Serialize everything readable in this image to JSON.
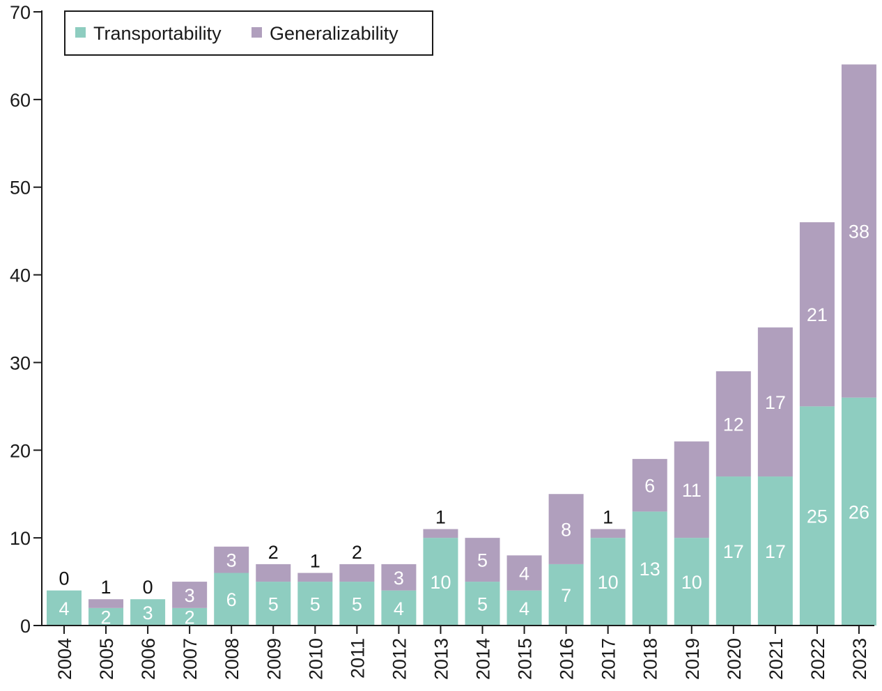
{
  "chart_data": {
    "type": "bar",
    "stacked": true,
    "categories": [
      "2004",
      "2005",
      "2006",
      "2007",
      "2008",
      "2009",
      "2010",
      "2011",
      "2012",
      "2013",
      "2014",
      "2015",
      "2016",
      "2017",
      "2018",
      "2019",
      "2020",
      "2021",
      "2022",
      "2023"
    ],
    "series": [
      {
        "name": "Transportability",
        "color": "#8ecdc0",
        "values": [
          4,
          2,
          3,
          2,
          6,
          5,
          5,
          5,
          4,
          10,
          5,
          4,
          7,
          10,
          13,
          10,
          17,
          17,
          25,
          26
        ]
      },
      {
        "name": "Generalizability",
        "color": "#b09fbd",
        "values": [
          0,
          1,
          0,
          3,
          3,
          2,
          1,
          2,
          3,
          1,
          5,
          4,
          8,
          1,
          6,
          11,
          12,
          17,
          21,
          38
        ]
      }
    ],
    "ylim": [
      0,
      70
    ],
    "yticks": [
      0,
      10,
      20,
      30,
      40,
      50,
      60,
      70
    ],
    "xlabel": "",
    "ylabel": "",
    "title": "",
    "legend": "top-left",
    "grid": false
  }
}
